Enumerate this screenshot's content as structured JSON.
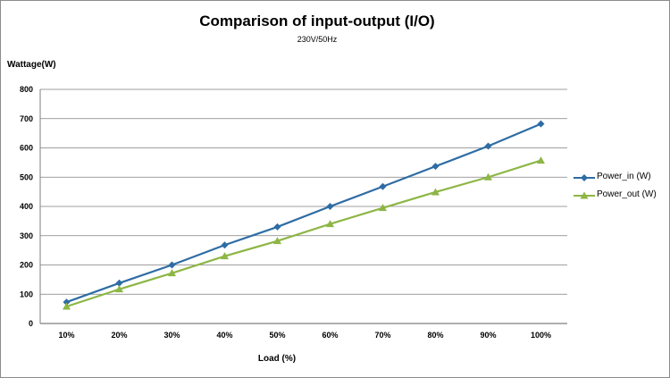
{
  "chart_data": {
    "type": "line",
    "title": "Comparison of input-output (I/O)",
    "subtitle": "230V/50Hz",
    "xlabel": "Load (%)",
    "ylabel": "Wattage(W)",
    "categories": [
      "10%",
      "20%",
      "30%",
      "40%",
      "50%",
      "60%",
      "70%",
      "80%",
      "90%",
      "100%"
    ],
    "ylim": [
      0,
      800
    ],
    "yticks": [
      0,
      100,
      200,
      300,
      400,
      500,
      600,
      700,
      800
    ],
    "grid": true,
    "legend_position": "right",
    "series": [
      {
        "name": "Power_in (W)",
        "color": "#2e6ca4",
        "marker": "diamond",
        "values": [
          73,
          138,
          200,
          268,
          330,
          400,
          468,
          537,
          606,
          682
        ]
      },
      {
        "name": "Power_out (W)",
        "color": "#8db645",
        "marker": "triangle",
        "values": [
          58,
          117,
          172,
          230,
          282,
          340,
          395,
          449,
          500,
          557
        ]
      }
    ]
  }
}
